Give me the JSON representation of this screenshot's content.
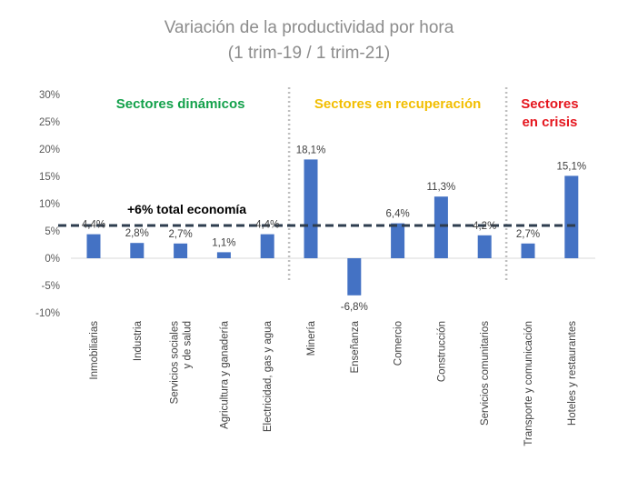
{
  "chart_data": {
    "type": "bar",
    "title_lines": [
      "Variación de la productividad por hora",
      "(1 trim-19 / 1 trim-21)"
    ],
    "y_ticks": [
      "30%",
      "25%",
      "20%",
      "15%",
      "10%",
      "5%",
      "0%",
      "-5%",
      "-10%"
    ],
    "y_tick_values": [
      30,
      25,
      20,
      15,
      10,
      5,
      0,
      -5,
      -10
    ],
    "ylim": [
      -10,
      30
    ],
    "categories": [
      [
        "Inmobiliarias"
      ],
      [
        "Industria"
      ],
      [
        "Servicios sociales",
        "y de salud"
      ],
      [
        "Agricultura y ganadería"
      ],
      [
        "Electricidad, gas y agua"
      ],
      [
        "Minería"
      ],
      [
        "Enseñanza"
      ],
      [
        "Comercio"
      ],
      [
        "Construcción"
      ],
      [
        "Servicios comunitarios"
      ],
      [
        "Transporte y comunicación"
      ],
      [
        "Hoteles y restaurantes"
      ]
    ],
    "values": [
      4.4,
      2.8,
      2.7,
      1.1,
      4.4,
      18.1,
      -6.8,
      6.4,
      11.3,
      4.2,
      2.7,
      15.1
    ],
    "value_labels": [
      "4,4%",
      "2,8%",
      "2,7%",
      "1,1%",
      "4,4%",
      "18,1%",
      "-6,8%",
      "6,4%",
      "11,3%",
      "4,2%",
      "2,7%",
      "15,1%"
    ],
    "reference_line": {
      "value": 6,
      "label": "+6% total economía",
      "color": "#2e3d4f"
    },
    "groups": [
      {
        "lines": [
          "Sectores dinámicos"
        ],
        "color": "#13a14b",
        "start": 0,
        "end": 4
      },
      {
        "lines": [
          "Sectores en recuperación"
        ],
        "color": "#f2be00",
        "start": 5,
        "end": 9
      },
      {
        "lines": [
          "Sectores",
          "en crisis"
        ],
        "color": "#e5161e",
        "start": 10,
        "end": 11
      }
    ],
    "bar_color": "#4472c4",
    "separator_color": "#bfbfbf"
  }
}
